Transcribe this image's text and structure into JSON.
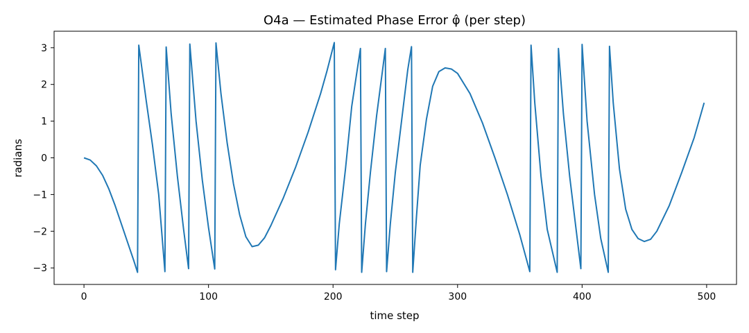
{
  "chart_data": {
    "type": "line",
    "title": "O4a — Estimated Phase Error φ̂ (per step)",
    "xlabel": "time step",
    "ylabel": "radians",
    "xlim": [
      -24,
      524
    ],
    "ylim": [
      -3.45,
      3.45
    ],
    "xticks": [
      0,
      100,
      200,
      300,
      400,
      500
    ],
    "yticks": [
      -3,
      -2,
      -1,
      0,
      1,
      2,
      3
    ],
    "xtick_labels": [
      "0",
      "100",
      "200",
      "300",
      "400",
      "500"
    ],
    "ytick_labels": [
      "−3",
      "−2",
      "−1",
      "0",
      "1",
      "2",
      "3"
    ],
    "grid": false,
    "series": [
      {
        "color": "#1f77b4",
        "points": [
          [
            0,
            0.0
          ],
          [
            5,
            -0.06
          ],
          [
            10,
            -0.22
          ],
          [
            15,
            -0.48
          ],
          [
            20,
            -0.85
          ],
          [
            25,
            -1.3
          ],
          [
            30,
            -1.8
          ],
          [
            35,
            -2.3
          ],
          [
            40,
            -2.8
          ],
          [
            43,
            -3.12
          ],
          [
            44,
            3.07
          ],
          [
            50,
            1.55
          ],
          [
            55,
            0.35
          ],
          [
            60,
            -1.0
          ],
          [
            65,
            -3.1
          ],
          [
            66,
            3.02
          ],
          [
            70,
            1.2
          ],
          [
            75,
            -0.5
          ],
          [
            80,
            -1.95
          ],
          [
            84,
            -3.02
          ],
          [
            85,
            3.1
          ],
          [
            90,
            1.0
          ],
          [
            95,
            -0.6
          ],
          [
            100,
            -1.9
          ],
          [
            105,
            -3.03
          ],
          [
            106,
            3.13
          ],
          [
            110,
            1.75
          ],
          [
            115,
            0.4
          ],
          [
            120,
            -0.7
          ],
          [
            125,
            -1.55
          ],
          [
            130,
            -2.15
          ],
          [
            135,
            -2.42
          ],
          [
            140,
            -2.38
          ],
          [
            145,
            -2.18
          ],
          [
            150,
            -1.85
          ],
          [
            160,
            -1.1
          ],
          [
            170,
            -0.25
          ],
          [
            180,
            0.7
          ],
          [
            190,
            1.75
          ],
          [
            195,
            2.35
          ],
          [
            201,
            3.14
          ],
          [
            202,
            -3.05
          ],
          [
            205,
            -1.8
          ],
          [
            210,
            -0.3
          ],
          [
            215,
            1.4
          ],
          [
            222,
            2.98
          ],
          [
            223,
            -3.12
          ],
          [
            226,
            -1.8
          ],
          [
            230,
            -0.4
          ],
          [
            235,
            1.15
          ],
          [
            240,
            2.45
          ],
          [
            242,
            2.98
          ],
          [
            243,
            -3.1
          ],
          [
            246,
            -1.8
          ],
          [
            250,
            -0.4
          ],
          [
            255,
            1.0
          ],
          [
            260,
            2.4
          ],
          [
            263,
            3.03
          ],
          [
            264,
            -3.12
          ],
          [
            267,
            -1.6
          ],
          [
            270,
            -0.2
          ],
          [
            275,
            1.05
          ],
          [
            280,
            1.95
          ],
          [
            285,
            2.35
          ],
          [
            290,
            2.45
          ],
          [
            295,
            2.42
          ],
          [
            300,
            2.3
          ],
          [
            310,
            1.75
          ],
          [
            320,
            0.95
          ],
          [
            330,
            0.0
          ],
          [
            340,
            -1.0
          ],
          [
            350,
            -2.1
          ],
          [
            358,
            -3.1
          ],
          [
            359,
            3.07
          ],
          [
            362,
            1.5
          ],
          [
            367,
            -0.5
          ],
          [
            372,
            -1.95
          ],
          [
            380,
            -3.12
          ],
          [
            381,
            2.98
          ],
          [
            385,
            1.2
          ],
          [
            390,
            -0.5
          ],
          [
            395,
            -1.9
          ],
          [
            399,
            -3.02
          ],
          [
            400,
            3.09
          ],
          [
            404,
            1.0
          ],
          [
            410,
            -1.0
          ],
          [
            415,
            -2.2
          ],
          [
            421,
            -3.12
          ],
          [
            422,
            3.04
          ],
          [
            425,
            1.5
          ],
          [
            430,
            -0.3
          ],
          [
            435,
            -1.4
          ],
          [
            440,
            -1.95
          ],
          [
            445,
            -2.2
          ],
          [
            450,
            -2.28
          ],
          [
            455,
            -2.22
          ],
          [
            460,
            -2.0
          ],
          [
            470,
            -1.3
          ],
          [
            480,
            -0.4
          ],
          [
            490,
            0.55
          ],
          [
            498,
            1.5
          ]
        ]
      }
    ]
  }
}
